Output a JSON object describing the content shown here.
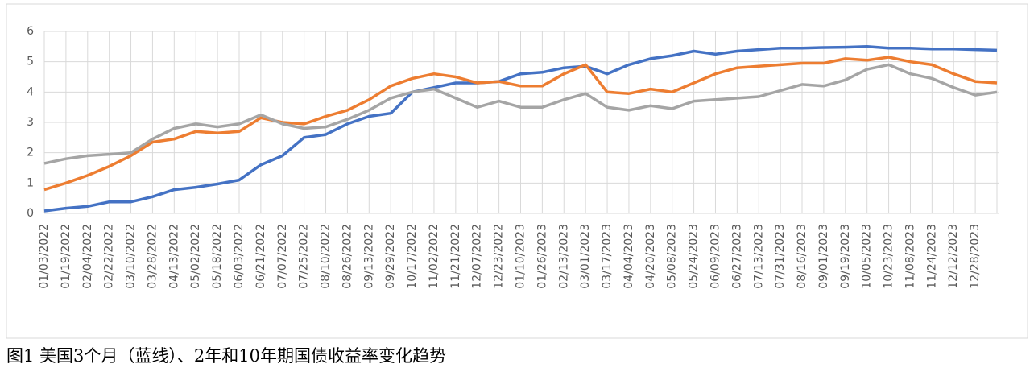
{
  "chart_data": {
    "type": "line",
    "caption": "图1 美国3个月（蓝线）、2年和10年期国债收益率变化趋势",
    "categories": [
      "01/03/2022",
      "01/19/2022",
      "02/04/2022",
      "02/22/2022",
      "03/10/2022",
      "03/28/2022",
      "04/13/2022",
      "05/02/2022",
      "05/18/2022",
      "06/03/2022",
      "06/21/2022",
      "07/07/2022",
      "07/25/2022",
      "08/10/2022",
      "08/26/2022",
      "09/13/2022",
      "09/29/2022",
      "10/17/2022",
      "11/02/2022",
      "11/21/2022",
      "12/07/2022",
      "12/23/2022",
      "01/10/2023",
      "01/26/2023",
      "02/13/2023",
      "03/01/2023",
      "03/17/2023",
      "04/04/2023",
      "04/20/2023",
      "05/08/2023",
      "05/24/2023",
      "06/09/2023",
      "06/27/2023",
      "07/13/2023",
      "07/31/2023",
      "08/16/2023",
      "09/01/2023",
      "09/19/2023",
      "10/05/2023",
      "10/23/2023",
      "11/08/2023",
      "11/24/2023",
      "12/12/2023",
      "12/28/2023",
      null
    ],
    "series": [
      {
        "color": "#4472c4",
        "values": [
          0.08,
          0.17,
          0.23,
          0.38,
          0.38,
          0.55,
          0.78,
          0.86,
          0.97,
          1.1,
          1.6,
          1.9,
          2.5,
          2.6,
          2.95,
          3.2,
          3.3,
          4.0,
          4.15,
          4.3,
          4.3,
          4.35,
          4.6,
          4.65,
          4.8,
          4.85,
          4.6,
          4.9,
          5.1,
          5.2,
          5.35,
          5.25,
          5.35,
          5.4,
          5.45,
          5.45,
          5.47,
          5.48,
          5.5,
          5.45,
          5.45,
          5.42,
          5.42,
          5.4,
          5.38
        ]
      },
      {
        "color": "#ed7d31",
        "values": [
          0.78,
          1.0,
          1.25,
          1.55,
          1.9,
          2.35,
          2.45,
          2.7,
          2.65,
          2.7,
          3.15,
          3.0,
          2.95,
          3.2,
          3.4,
          3.75,
          4.2,
          4.45,
          4.6,
          4.5,
          4.3,
          4.35,
          4.2,
          4.2,
          4.6,
          4.9,
          4.0,
          3.95,
          4.1,
          4.0,
          4.3,
          4.6,
          4.8,
          4.85,
          4.9,
          4.95,
          4.95,
          5.1,
          5.05,
          5.15,
          5.0,
          4.9,
          4.6,
          4.35,
          4.3
        ]
      },
      {
        "color": "#a5a5a5",
        "values": [
          1.65,
          1.8,
          1.9,
          1.95,
          2.0,
          2.45,
          2.8,
          2.95,
          2.85,
          2.95,
          3.25,
          2.95,
          2.8,
          2.85,
          3.1,
          3.4,
          3.8,
          4.0,
          4.1,
          3.8,
          3.5,
          3.7,
          3.5,
          3.5,
          3.75,
          3.95,
          3.5,
          3.4,
          3.55,
          3.45,
          3.7,
          3.75,
          3.8,
          3.85,
          4.05,
          4.25,
          4.2,
          4.4,
          4.75,
          4.9,
          4.6,
          4.45,
          4.15,
          3.9,
          4.0
        ]
      }
    ],
    "ylim": [
      0,
      6
    ],
    "yticks": [
      0,
      1,
      2,
      3,
      4,
      5,
      6
    ],
    "grid": true
  }
}
